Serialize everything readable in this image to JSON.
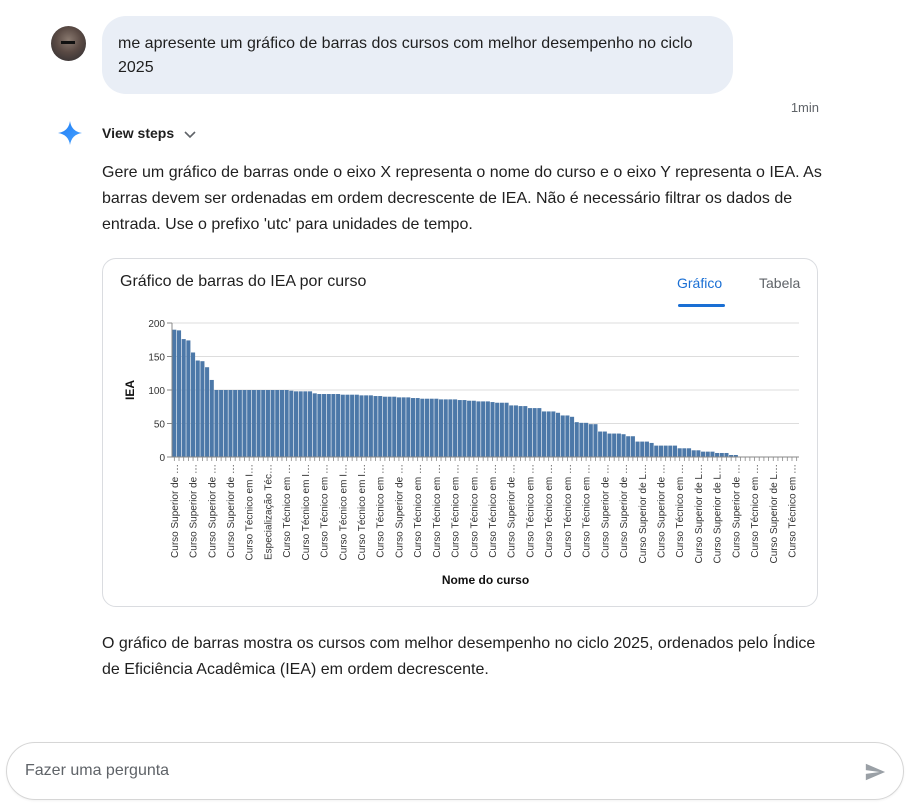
{
  "user_message": {
    "text": "me apresente um gráfico de barras dos cursos com melhor desempenho no ciclo 2025",
    "timestamp": "1min"
  },
  "response": {
    "view_steps_label": "View steps",
    "intro": "Gere um gráfico de barras onde o eixo X representa o nome do curso e o eixo Y representa o IEA. As barras devem ser ordenadas em ordem decrescente de IEA. Não é necessário filtrar os dados de entrada. Use o prefixo 'utc' para unidades de tempo.",
    "summary": "O gráfico de barras mostra os cursos com melhor desempenho no ciclo 2025, ordenados pelo Índice de Eficiência Acadêmica (IEA) em ordem decrescente."
  },
  "card": {
    "title": "Gráfico de barras do IEA por curso",
    "tabs": [
      {
        "label": "Gráfico",
        "active": true
      },
      {
        "label": "Tabela",
        "active": false
      }
    ]
  },
  "chart_data": {
    "type": "bar",
    "title": "Gráfico de barras do IEA por curso",
    "xlabel": "Nome do curso",
    "ylabel": "IEA",
    "ylim": [
      0,
      200
    ],
    "yticks": [
      0,
      50,
      100,
      150,
      200
    ],
    "grid": true,
    "color": "#4c78a8",
    "sort": "descending",
    "label_every": 4,
    "tick_labels": [
      "Curso Superior de …",
      "Curso Superior de …",
      "Curso Superior de …",
      "Curso Superior de …",
      "Curso Técnico em I…",
      "Especialização Téc…",
      "Curso Técnico em …",
      "Curso Técnico em I…",
      "Curso Técnico em …",
      "Curso Técnico em I…",
      "Curso Técnico em I…",
      "Curso Técnico em …",
      "Curso Superior de …",
      "Curso Técnico em …",
      "Curso Técnico em …",
      "Curso Técnico em …",
      "Curso Técnico em …",
      "Curso Técnico em …",
      "Curso Superior de …",
      "Curso Técnico em …",
      "Curso Técnico em …",
      "Curso Técnico em …",
      "Curso Técnico em …",
      "Curso Superior de …",
      "Curso Superior de …",
      "Curso Superior de L…",
      "Curso Superior de …",
      "Curso Técnico em …",
      "Curso Superior de L…",
      "Curso Superior de L…",
      "Curso Superior de …",
      "Curso Técnico em …",
      "Curso Superior de L…",
      "Curso Técnico em …"
    ],
    "values": [
      190,
      189,
      176,
      174,
      156,
      144,
      143,
      134,
      115,
      100,
      100,
      100,
      100,
      100,
      100,
      100,
      100,
      100,
      100,
      100,
      100,
      100,
      100,
      100,
      100,
      99,
      98,
      98,
      98,
      98,
      95,
      94,
      94,
      94,
      94,
      94,
      93,
      93,
      93,
      93,
      92,
      92,
      92,
      91,
      91,
      90,
      90,
      90,
      89,
      89,
      89,
      88,
      88,
      87,
      87,
      87,
      87,
      86,
      86,
      86,
      86,
      85,
      85,
      84,
      84,
      83,
      83,
      83,
      82,
      81,
      81,
      81,
      77,
      77,
      76,
      76,
      73,
      73,
      73,
      68,
      68,
      68,
      66,
      62,
      62,
      60,
      52,
      51,
      51,
      49,
      49,
      38,
      38,
      35,
      35,
      35,
      34,
      31,
      31,
      23,
      23,
      23,
      21,
      17,
      17,
      17,
      17,
      17,
      13,
      13,
      13,
      10,
      10,
      8,
      8,
      8,
      6,
      6,
      6,
      3,
      3,
      0,
      0,
      0,
      0,
      0,
      0,
      0,
      0,
      0,
      0,
      0,
      0,
      0
    ]
  },
  "input": {
    "placeholder": "Fazer uma pergunta",
    "value": ""
  },
  "icons": {
    "sparkle": "gemini-sparkle-icon",
    "chevron": "chevron-down-icon",
    "send": "send-icon"
  }
}
